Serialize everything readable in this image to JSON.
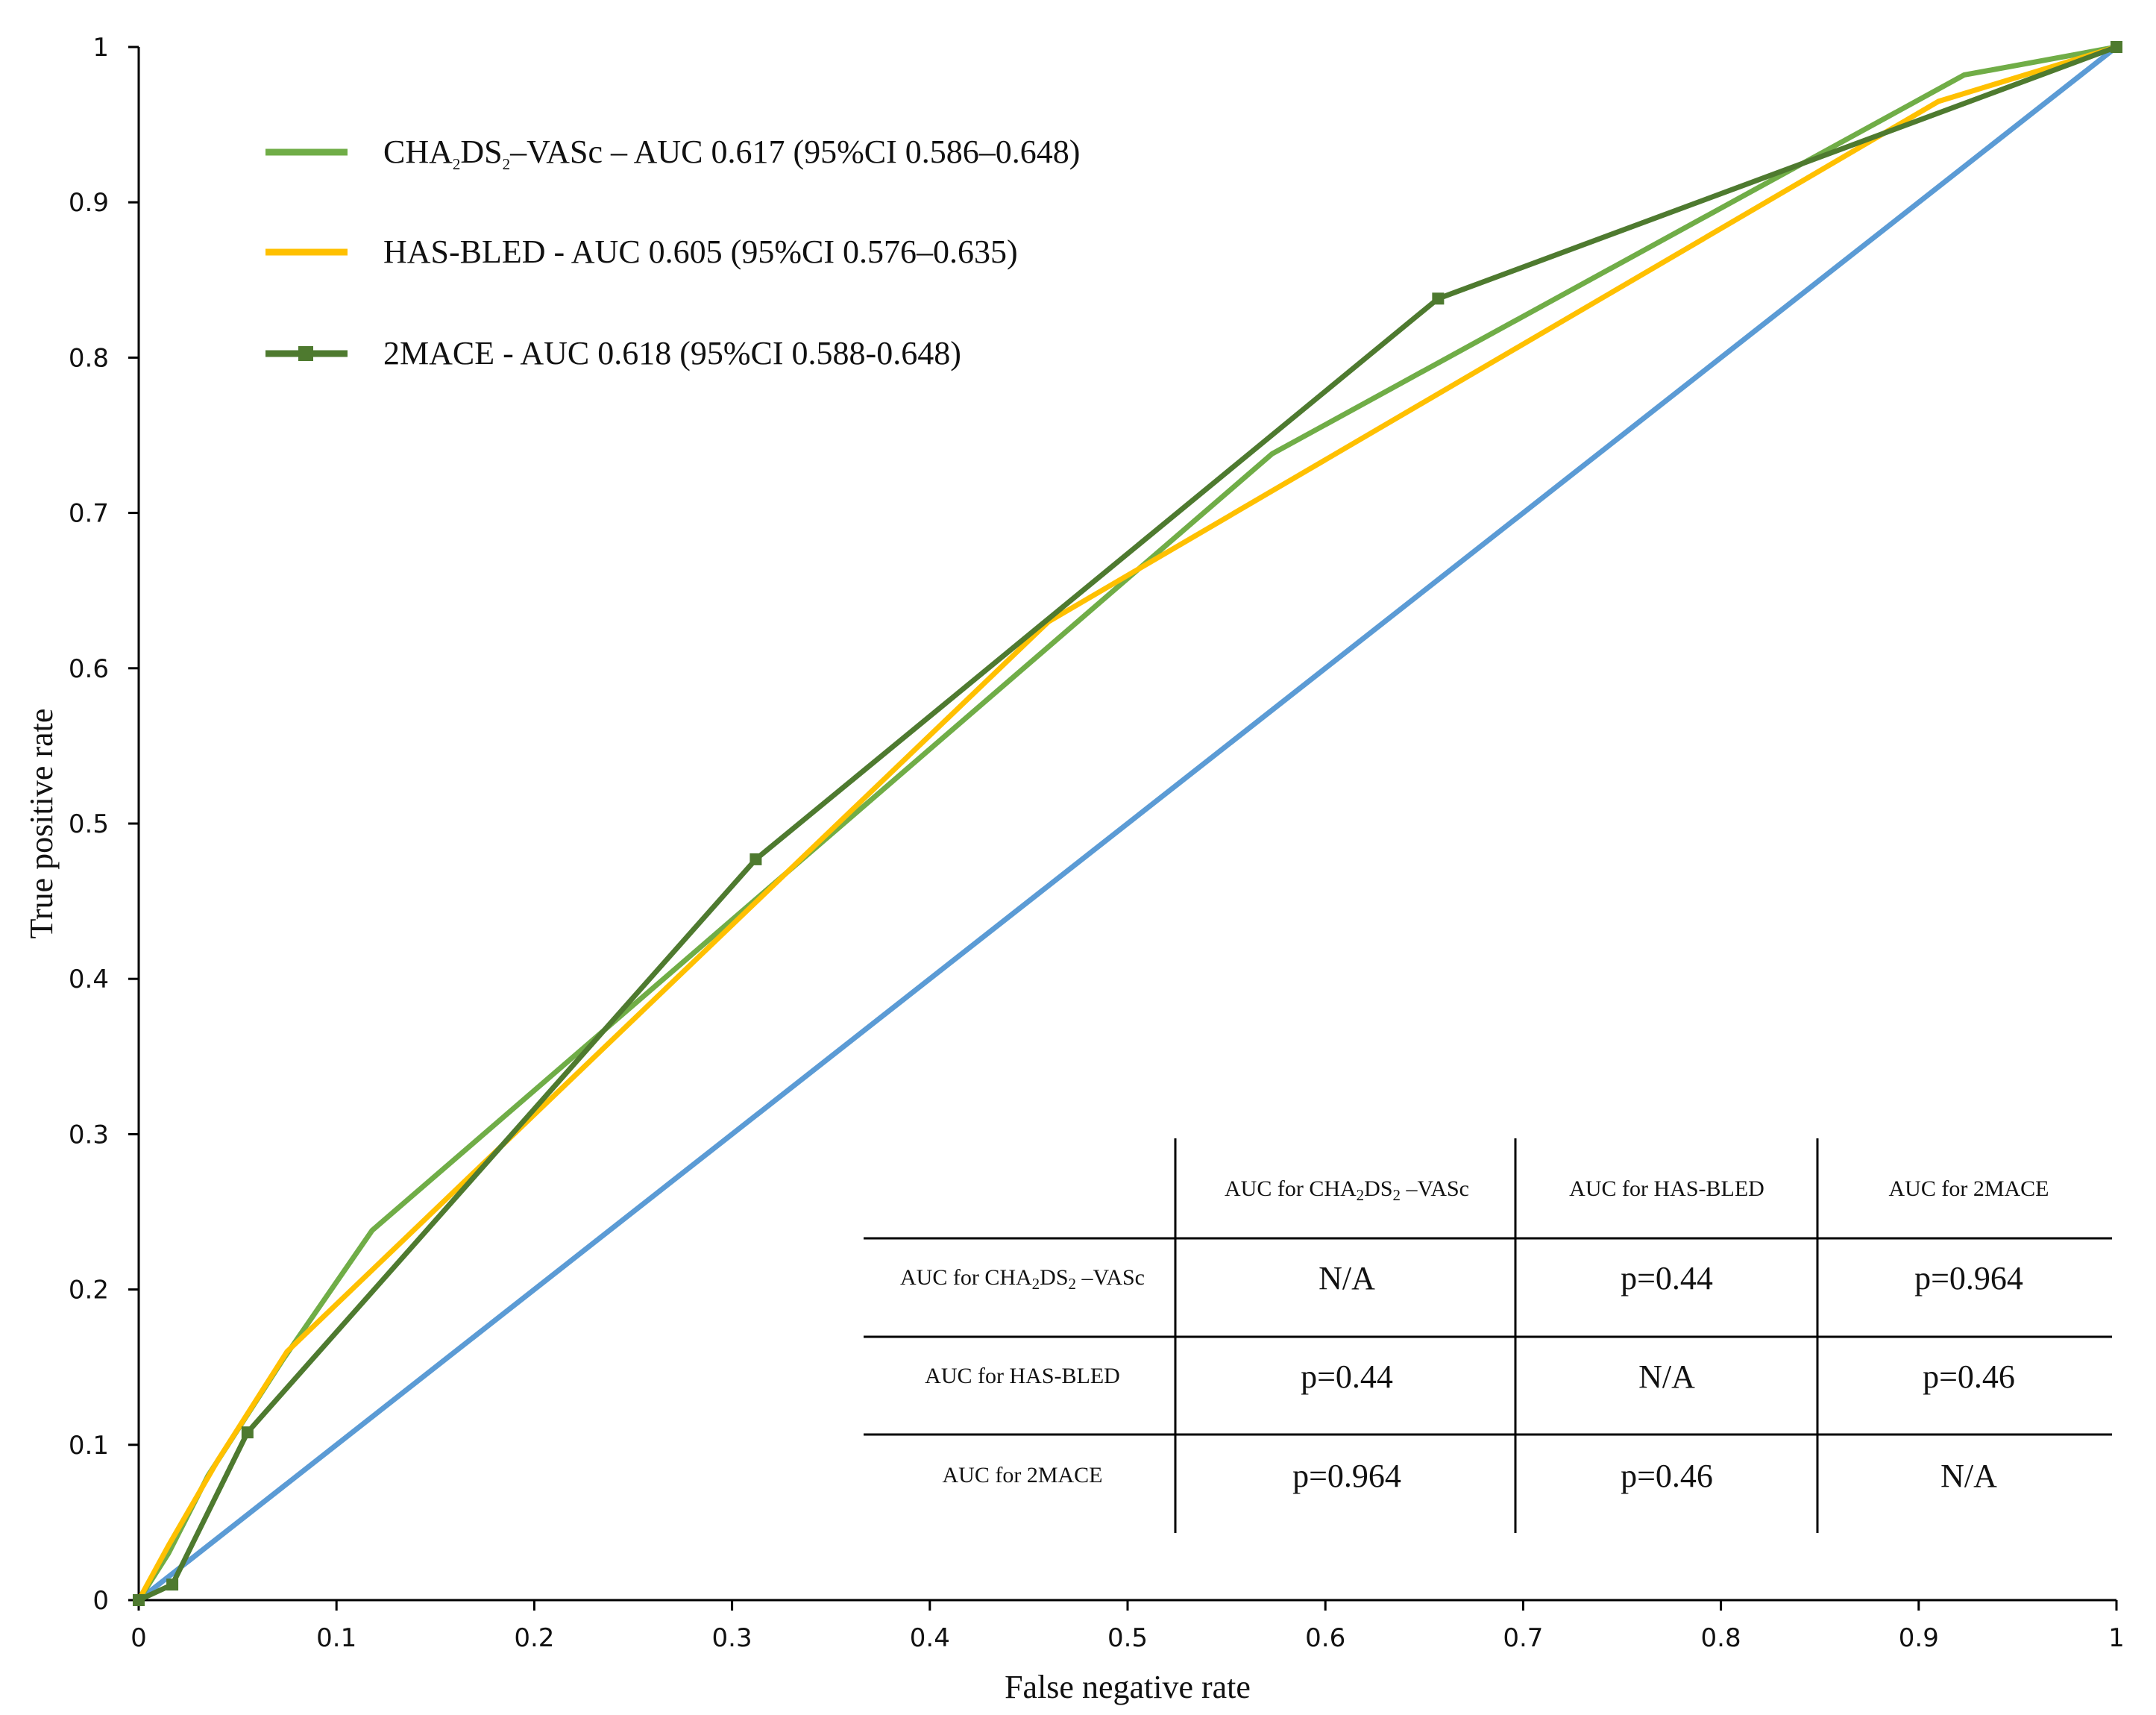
{
  "chart_data": {
    "type": "line",
    "xlabel": "False negative rate",
    "ylabel": "True positive rate",
    "xlim": [
      0,
      1
    ],
    "ylim": [
      0,
      1
    ],
    "xticks": [
      "0",
      "0.1",
      "0.2",
      "0.3",
      "0.4",
      "0.5",
      "0.6",
      "0.7",
      "0.8",
      "0.9",
      "1"
    ],
    "yticks": [
      "0",
      "0.1",
      "0.2",
      "0.3",
      "0.4",
      "0.5",
      "0.6",
      "0.7",
      "0.8",
      "0.9",
      "1"
    ],
    "grid": false,
    "legend_position": "top-left",
    "series": [
      {
        "key": "cha",
        "legend_parts": [
          "CHA",
          "2",
          "DS",
          "2",
          "–VASc – AUC 0.617 (95%CI 0.586–0.648)"
        ],
        "color": "#70ad47",
        "marker": "none",
        "points": [
          [
            0,
            0
          ],
          [
            0.015,
            0.03
          ],
          [
            0.035,
            0.08
          ],
          [
            0.073,
            0.155
          ],
          [
            0.118,
            0.238
          ],
          [
            0.573,
            0.738
          ],
          [
            0.923,
            0.982
          ],
          [
            1,
            1
          ]
        ]
      },
      {
        "key": "hasbled",
        "legend_parts": [
          "HAS-BLED - AUC 0.605 (95%CI 0.576–0.635)"
        ],
        "color": "#ffc000",
        "marker": "none",
        "points": [
          [
            0,
            0
          ],
          [
            0.015,
            0.035
          ],
          [
            0.04,
            0.09
          ],
          [
            0.075,
            0.16
          ],
          [
            0.46,
            0.63
          ],
          [
            0.91,
            0.965
          ],
          [
            1,
            1
          ]
        ]
      },
      {
        "key": "twomace",
        "legend_parts": [
          "2MACE - AUC 0.618 (95%CI 0.588-0.648)"
        ],
        "color": "#4e7a2f",
        "marker": "square",
        "points": [
          [
            0,
            0
          ],
          [
            0.017,
            0.01
          ],
          [
            0.055,
            0.108
          ],
          [
            0.312,
            0.477
          ],
          [
            0.657,
            0.838
          ],
          [
            1,
            1
          ]
        ]
      },
      {
        "key": "reference",
        "color": "#5b9bd5",
        "marker": "none",
        "points": [
          [
            0,
            0
          ],
          [
            1,
            1
          ]
        ]
      }
    ],
    "table": {
      "columns": [
        [
          "AUC for CHA",
          "2",
          "DS",
          "2",
          " –VASc"
        ],
        [
          "AUC for HAS-BLED"
        ],
        [
          "AUC for 2MACE"
        ]
      ],
      "rows": [
        {
          "label": [
            "AUC for CHA",
            "2",
            "DS",
            "2",
            " –VASc"
          ],
          "cells": [
            "N/A",
            "p=0.44",
            "p=0.964"
          ]
        },
        {
          "label": [
            "AUC for HAS-BLED"
          ],
          "cells": [
            "p=0.44",
            "N/A",
            "p=0.46"
          ]
        },
        {
          "label": [
            "AUC for 2MACE"
          ],
          "cells": [
            "p=0.964",
            "p=0.46",
            "N/A"
          ]
        }
      ]
    }
  }
}
